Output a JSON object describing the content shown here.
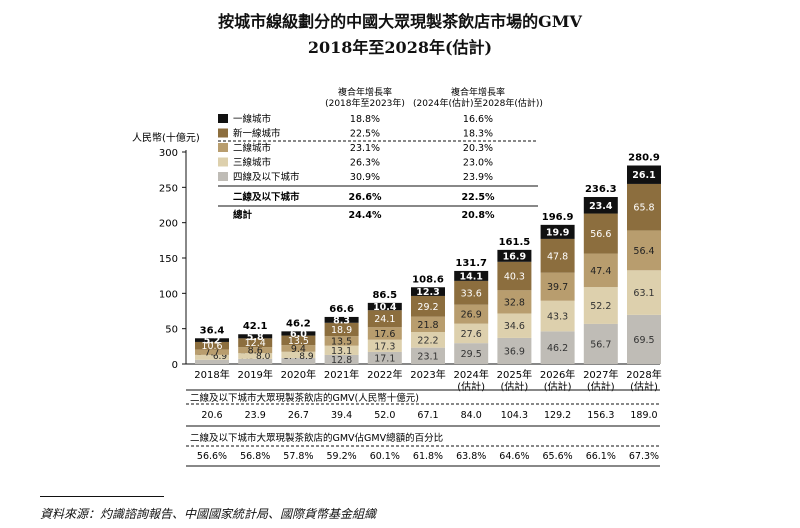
{
  "title_line1": "按城市線級劃分的中國大眾現製茶飲店市場的GMV",
  "title_line2": "2018年至2028年(估計)",
  "source": "資料來源：灼識諮詢報告、中國國家統計局、國際貨幣基金組織",
  "colors": {
    "tier1": "#111111",
    "newtier1": "#8c6e3e",
    "tier2": "#b89d6e",
    "tier3": "#ddd0ad",
    "tier4": "#bfbcb6"
  },
  "legend": {
    "cagr_header1": [
      "複合年增長率",
      "(2018年至2023年)"
    ],
    "cagr_header2": [
      "複合年增長率",
      "(2024年(估計)至2028年(估計))"
    ],
    "rows": [
      {
        "name": "一線城市",
        "cagr1": "18.8%",
        "cagr2": "16.6%"
      },
      {
        "name": "新一線城市",
        "cagr1": "22.5%",
        "cagr2": "18.3%"
      },
      {
        "name": "二線城市",
        "cagr1": "23.1%",
        "cagr2": "20.3%"
      },
      {
        "name": "三線城市",
        "cagr1": "26.3%",
        "cagr2": "23.0%"
      },
      {
        "name": "四線及以下城市",
        "cagr1": "30.9%",
        "cagr2": "23.9%"
      }
    ],
    "sum_row": {
      "name": "二線及以下城市",
      "cagr1": "26.6%",
      "cagr2": "22.5%"
    },
    "total_row": {
      "name": "總計",
      "cagr1": "24.4%",
      "cagr2": "20.8%"
    }
  },
  "bottom_table": {
    "row1_title": "二線及以下城市大眾現製茶飲店的GMV(人民幣十億元)",
    "row1_values": [
      "20.6",
      "23.9",
      "26.7",
      "39.4",
      "52.0",
      "67.1",
      "84.0",
      "104.3",
      "129.2",
      "156.3",
      "189.0"
    ],
    "row2_title": "二線及以下城市大眾現製茶飲店的GMV佔GMV總額的百分比",
    "row2_values": [
      "56.6%",
      "56.8%",
      "57.8%",
      "59.2%",
      "60.1%",
      "61.8%",
      "63.8%",
      "64.6%",
      "65.6%",
      "66.1%",
      "67.3%"
    ]
  },
  "chart_data": {
    "type": "bar",
    "stacked": true,
    "ylabel": "人民幣(十億元)",
    "ylim": [
      0,
      300
    ],
    "yticks": [
      "0",
      "50",
      "100",
      "150",
      "200",
      "250",
      "300"
    ],
    "categories": [
      [
        "2018年"
      ],
      [
        "2019年"
      ],
      [
        "2020年"
      ],
      [
        "2021年"
      ],
      [
        "2022年"
      ],
      [
        "2023年"
      ],
      [
        "2024年",
        "(估計)"
      ],
      [
        "2025年",
        "(估計)"
      ],
      [
        "2026年",
        "(估計)"
      ],
      [
        "2027年",
        "(估計)"
      ],
      [
        "2028年",
        "(估計)"
      ]
    ],
    "totals": [
      "36.4",
      "42.1",
      "46.2",
      "66.6",
      "86.5",
      "108.6",
      "131.7",
      "161.5",
      "196.9",
      "236.3",
      "280.9"
    ],
    "series": [
      {
        "name": "四線及以下城市",
        "values": [
          6.0,
          7.3,
          8.4,
          12.8,
          17.1,
          23.1,
          29.5,
          36.9,
          46.2,
          56.7,
          69.5
        ],
        "labels": [
          "6.0",
          "7.3",
          "8.4",
          "12.8",
          "17.1",
          "23.1",
          "29.5",
          "36.9",
          "46.2",
          "56.7",
          "69.5"
        ]
      },
      {
        "name": "三線城市",
        "values": [
          6.9,
          8.0,
          8.9,
          13.1,
          17.3,
          22.2,
          27.6,
          34.6,
          43.3,
          52.2,
          63.1
        ],
        "labels": [
          "6.9",
          "8.0",
          "8.9",
          "13.1",
          "17.3",
          "22.2",
          "27.6",
          "34.6",
          "43.3",
          "52.2",
          "63.1"
        ]
      },
      {
        "name": "二線城市",
        "values": [
          7.7,
          8.6,
          9.4,
          13.5,
          17.6,
          21.8,
          26.9,
          32.8,
          39.7,
          47.4,
          56.4
        ],
        "labels": [
          "7.7",
          "8.6",
          "9.4",
          "13.5",
          "17.6",
          "21.8",
          "26.9",
          "32.8",
          "39.7",
          "47.4",
          "56.4"
        ]
      },
      {
        "name": "新一線城市",
        "values": [
          10.6,
          12.4,
          13.5,
          18.9,
          24.1,
          29.2,
          33.6,
          40.3,
          47.8,
          56.6,
          65.8
        ],
        "labels": [
          "10.6",
          "12.4",
          "13.5",
          "18.9",
          "24.1",
          "29.2",
          "33.6",
          "40.3",
          "47.8",
          "56.6",
          "65.8"
        ]
      },
      {
        "name": "一線城市",
        "values": [
          5.2,
          5.8,
          6.0,
          8.3,
          10.4,
          12.3,
          14.1,
          16.9,
          19.9,
          23.4,
          26.1
        ],
        "labels": [
          "5.2",
          "5.8",
          "6.0",
          "8.3",
          "10.4",
          "12.3",
          "14.1",
          "16.9",
          "19.9",
          "23.4",
          "26.1"
        ]
      }
    ]
  }
}
